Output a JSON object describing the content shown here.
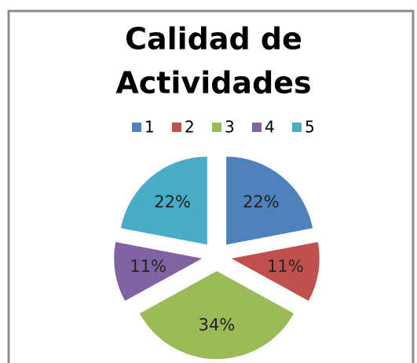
{
  "chart_data": {
    "type": "pie",
    "title_lines": [
      "Calidad de",
      "Actividades"
    ],
    "categories": [
      "1",
      "2",
      "3",
      "4",
      "5"
    ],
    "values": [
      22,
      11,
      34,
      11,
      22
    ],
    "value_labels": [
      "22%",
      "11%",
      "34%",
      "11%",
      "22%"
    ],
    "colors": [
      "#4f81bd",
      "#c0504d",
      "#9bbb59",
      "#8064a2",
      "#4bacc6"
    ],
    "legend": "top"
  }
}
